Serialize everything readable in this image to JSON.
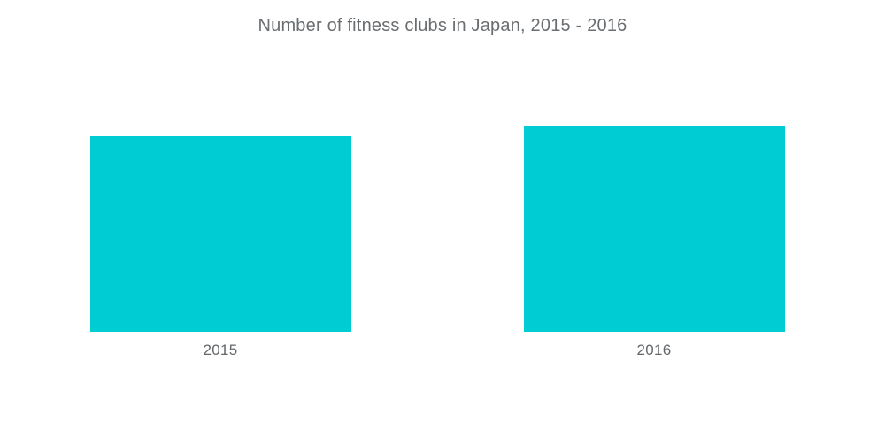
{
  "title": "Number of fitness clubs in Japan, 2015 - 2016",
  "colors": {
    "bar": "#00CDD3",
    "title_text": "#6A6E71",
    "category_label_text": "#636769",
    "background": "#FFFFFF"
  },
  "chart_data": {
    "type": "bar",
    "title": "Number of fitness clubs in Japan, 2015 - 2016",
    "xlabel": "",
    "ylabel": "",
    "categories": [
      "2015",
      "2016"
    ],
    "values": [
      221,
      233
    ],
    "ylim": [
      0,
      233
    ],
    "grid": false,
    "legend": false,
    "y_axis_visible": false,
    "x_axis_line_visible": false,
    "value_labels_visible": false,
    "bar_color": "#00CDD3"
  }
}
